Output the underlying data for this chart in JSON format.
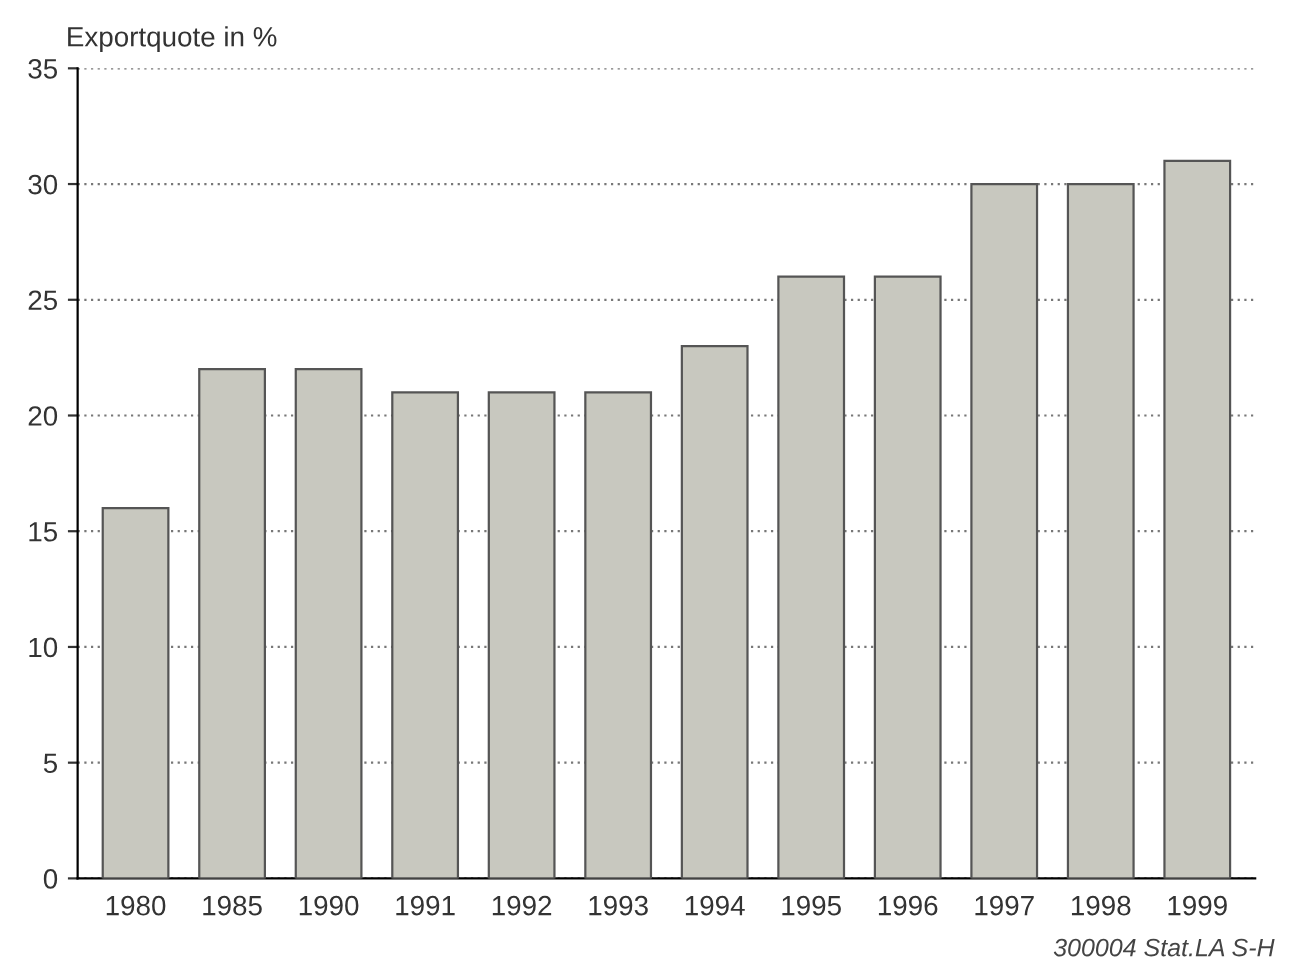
{
  "chart_data": {
    "type": "bar",
    "ylabel": "Exportquote in %",
    "categories": [
      "1980",
      "1985",
      "1990",
      "1991",
      "1992",
      "1993",
      "1994",
      "1995",
      "1996",
      "1997",
      "1998",
      "1999"
    ],
    "values": [
      16,
      22,
      22,
      21,
      21,
      21,
      23,
      26,
      26,
      30,
      30,
      31
    ],
    "color": "#c8c8bf",
    "ylim": [
      0,
      35
    ],
    "yticks": [
      0,
      5,
      10,
      15,
      20,
      25,
      30,
      35
    ],
    "grid": "y",
    "annotations": [
      "300004 Stat.LA S-H"
    ]
  }
}
